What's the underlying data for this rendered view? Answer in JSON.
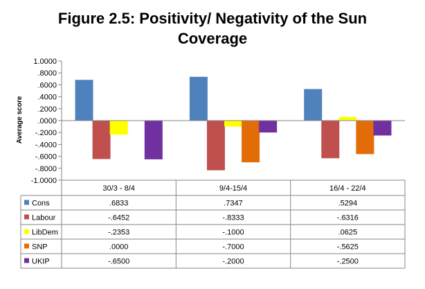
{
  "chart_data": {
    "type": "bar",
    "title": "Figure 2.5: Positivity/ Negativity of the Sun Coverage",
    "title_lines": [
      "Figure 2.5: Positivity/ Negativity of the Sun",
      "Coverage"
    ],
    "xlabel": "",
    "ylabel": "Average score",
    "ylim": [
      -1,
      1
    ],
    "ytick_values": [
      1,
      0.8,
      0.6,
      0.4,
      0.2,
      0,
      -0.2,
      -0.4,
      -0.6,
      -0.8,
      -1
    ],
    "yticks": [
      "1.0000",
      ".8000",
      ".6000",
      ".4000",
      ".2000",
      ".0000",
      "-.2000",
      "-.4000",
      "-.6000",
      "-.8000",
      "-1.0000"
    ],
    "categories": [
      "30/3 - 8/4",
      "9/4-15/4",
      "16/4 - 22/4"
    ],
    "legend_position": "data-table",
    "series": [
      {
        "name": "Cons",
        "color": "#4F81BD",
        "values": [
          0.6833,
          0.7347,
          0.5294
        ],
        "labels": [
          ".6833",
          ".7347",
          ".5294"
        ]
      },
      {
        "name": "Labour",
        "color": "#C0504D",
        "values": [
          -0.6452,
          -0.8333,
          -0.6316
        ],
        "labels": [
          "-.6452",
          "-.8333",
          "-.6316"
        ]
      },
      {
        "name": "LibDem",
        "color": "#FFFF00",
        "values": [
          -0.2353,
          -0.1,
          0.0625
        ],
        "labels": [
          "-.2353",
          "-.1000",
          ".0625"
        ]
      },
      {
        "name": "SNP",
        "color": "#E36C09",
        "values": [
          0,
          -0.7,
          -0.5625
        ],
        "labels": [
          ".0000",
          "-.7000",
          "-.5625"
        ]
      },
      {
        "name": "UKIP",
        "color": "#7030A0",
        "values": [
          -0.65,
          -0.2,
          -0.25
        ],
        "labels": [
          "-.6500",
          "-.2000",
          "-.2500"
        ]
      }
    ]
  }
}
